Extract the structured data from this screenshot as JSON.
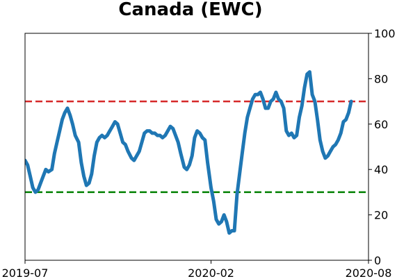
{
  "chart_data": {
    "type": "line",
    "title": "Canada (EWC)",
    "xlabel": "",
    "ylabel": "",
    "x_range": [
      "2019-07-01",
      "2020-08-01"
    ],
    "ylim": [
      0,
      100
    ],
    "y_axis_position": "right",
    "grid": false,
    "legend": "none",
    "x_ticks": [
      {
        "date": "2019-07-01",
        "label": "2019-07"
      },
      {
        "date": "2020-02-01",
        "label": "2020-02"
      },
      {
        "date": "2020-08-01",
        "label": "2020-08"
      }
    ],
    "y_ticks": [
      0,
      20,
      40,
      60,
      80,
      100
    ],
    "reference_lines": [
      {
        "value": 70,
        "color": "#d62728",
        "style": "dashed"
      },
      {
        "value": 30,
        "color": "#008000",
        "style": "dashed"
      }
    ],
    "series": [
      {
        "color": "#1f77b4",
        "points": [
          [
            "2019-07-01",
            44
          ],
          [
            "2019-07-04",
            42
          ],
          [
            "2019-07-07",
            37
          ],
          [
            "2019-07-10",
            32
          ],
          [
            "2019-07-13",
            30
          ],
          [
            "2019-07-16",
            31
          ],
          [
            "2019-07-19",
            34
          ],
          [
            "2019-07-22",
            37
          ],
          [
            "2019-07-25",
            40
          ],
          [
            "2019-07-28",
            39
          ],
          [
            "2019-08-01",
            40
          ],
          [
            "2019-08-04",
            47
          ],
          [
            "2019-08-07",
            52
          ],
          [
            "2019-08-10",
            57
          ],
          [
            "2019-08-13",
            62
          ],
          [
            "2019-08-16",
            65
          ],
          [
            "2019-08-19",
            67
          ],
          [
            "2019-08-22",
            64
          ],
          [
            "2019-08-25",
            60
          ],
          [
            "2019-08-28",
            55
          ],
          [
            "2019-09-01",
            52
          ],
          [
            "2019-09-04",
            43
          ],
          [
            "2019-09-07",
            37
          ],
          [
            "2019-09-10",
            33
          ],
          [
            "2019-09-13",
            34
          ],
          [
            "2019-09-16",
            38
          ],
          [
            "2019-09-19",
            46
          ],
          [
            "2019-09-22",
            52
          ],
          [
            "2019-09-25",
            54
          ],
          [
            "2019-09-28",
            55
          ],
          [
            "2019-10-01",
            54
          ],
          [
            "2019-10-04",
            55
          ],
          [
            "2019-10-07",
            57
          ],
          [
            "2019-10-10",
            59
          ],
          [
            "2019-10-13",
            61
          ],
          [
            "2019-10-16",
            60
          ],
          [
            "2019-10-19",
            56
          ],
          [
            "2019-10-22",
            52
          ],
          [
            "2019-10-25",
            51
          ],
          [
            "2019-10-28",
            48
          ],
          [
            "2019-11-01",
            45
          ],
          [
            "2019-11-04",
            44
          ],
          [
            "2019-11-07",
            46
          ],
          [
            "2019-11-10",
            48
          ],
          [
            "2019-11-13",
            52
          ],
          [
            "2019-11-16",
            56
          ],
          [
            "2019-11-19",
            57
          ],
          [
            "2019-11-22",
            57
          ],
          [
            "2019-11-25",
            56
          ],
          [
            "2019-11-28",
            56
          ],
          [
            "2019-12-01",
            55
          ],
          [
            "2019-12-04",
            55
          ],
          [
            "2019-12-07",
            54
          ],
          [
            "2019-12-10",
            55
          ],
          [
            "2019-12-13",
            57
          ],
          [
            "2019-12-16",
            59
          ],
          [
            "2019-12-19",
            58
          ],
          [
            "2019-12-22",
            55
          ],
          [
            "2019-12-25",
            52
          ],
          [
            "2019-12-28",
            47
          ],
          [
            "2020-01-01",
            41
          ],
          [
            "2020-01-04",
            40
          ],
          [
            "2020-01-07",
            42
          ],
          [
            "2020-01-10",
            46
          ],
          [
            "2020-01-13",
            54
          ],
          [
            "2020-01-16",
            57
          ],
          [
            "2020-01-19",
            56
          ],
          [
            "2020-01-22",
            54
          ],
          [
            "2020-01-25",
            53
          ],
          [
            "2020-01-28",
            43
          ],
          [
            "2020-02-01",
            32
          ],
          [
            "2020-02-04",
            26
          ],
          [
            "2020-02-07",
            18
          ],
          [
            "2020-02-10",
            16
          ],
          [
            "2020-02-13",
            17
          ],
          [
            "2020-02-16",
            20
          ],
          [
            "2020-02-19",
            17
          ],
          [
            "2020-02-22",
            12
          ],
          [
            "2020-02-25",
            13
          ],
          [
            "2020-02-28",
            13
          ],
          [
            "2020-03-02",
            29
          ],
          [
            "2020-03-05",
            38
          ],
          [
            "2020-03-08",
            47
          ],
          [
            "2020-03-11",
            56
          ],
          [
            "2020-03-14",
            63
          ],
          [
            "2020-03-17",
            67
          ],
          [
            "2020-03-20",
            71
          ],
          [
            "2020-03-23",
            73
          ],
          [
            "2020-03-26",
            73
          ],
          [
            "2020-03-29",
            74
          ],
          [
            "2020-04-01",
            71
          ],
          [
            "2020-04-04",
            67
          ],
          [
            "2020-04-07",
            67
          ],
          [
            "2020-04-10",
            70
          ],
          [
            "2020-04-13",
            71
          ],
          [
            "2020-04-16",
            74
          ],
          [
            "2020-04-19",
            71
          ],
          [
            "2020-04-22",
            70
          ],
          [
            "2020-04-25",
            67
          ],
          [
            "2020-04-28",
            57
          ],
          [
            "2020-05-01",
            55
          ],
          [
            "2020-05-04",
            56
          ],
          [
            "2020-05-07",
            54
          ],
          [
            "2020-05-10",
            55
          ],
          [
            "2020-05-13",
            63
          ],
          [
            "2020-05-16",
            68
          ],
          [
            "2020-05-19",
            76
          ],
          [
            "2020-05-22",
            82
          ],
          [
            "2020-05-25",
            83
          ],
          [
            "2020-05-28",
            73
          ],
          [
            "2020-05-31",
            70
          ],
          [
            "2020-06-03",
            62
          ],
          [
            "2020-06-06",
            53
          ],
          [
            "2020-06-09",
            48
          ],
          [
            "2020-06-12",
            45
          ],
          [
            "2020-06-15",
            46
          ],
          [
            "2020-06-18",
            48
          ],
          [
            "2020-06-21",
            50
          ],
          [
            "2020-06-24",
            51
          ],
          [
            "2020-06-27",
            53
          ],
          [
            "2020-06-30",
            56
          ],
          [
            "2020-07-03",
            61
          ],
          [
            "2020-07-06",
            62
          ],
          [
            "2020-07-09",
            65
          ],
          [
            "2020-07-12",
            70
          ]
        ]
      }
    ]
  }
}
